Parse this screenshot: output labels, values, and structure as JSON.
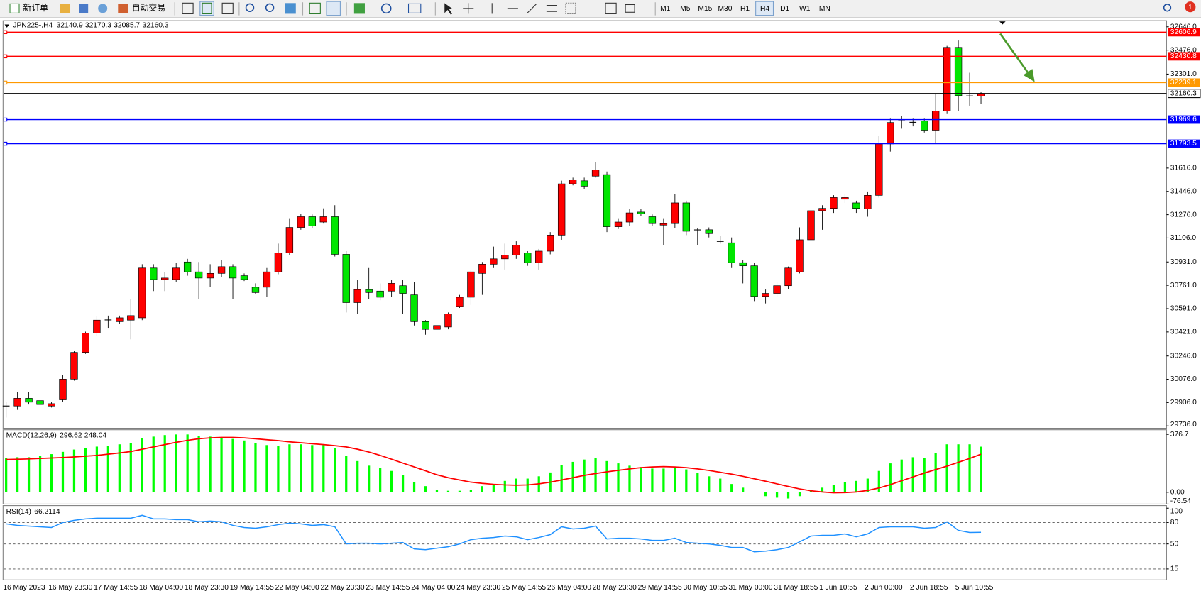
{
  "toolbar": {
    "new_order": "新订单",
    "auto_trading": "自动交易",
    "timeframes": [
      "M1",
      "M5",
      "M15",
      "M30",
      "H1",
      "H4",
      "D1",
      "W1",
      "MN"
    ],
    "notifications": 1
  },
  "chart_data": [
    {
      "type": "candlestick",
      "title": "JPN225-,H4",
      "categories": [
        "16 May 2023",
        null,
        null,
        null,
        "16 May 23:30",
        null,
        null,
        null,
        "17 May 14:55",
        null,
        null,
        null,
        "18 May 04:00",
        null,
        null,
        null,
        "18 May 23:30",
        null,
        null,
        null,
        "19 May 14:55",
        null,
        null,
        null,
        "22 May 04:00",
        null,
        null,
        null,
        "22 May 23:30",
        null,
        null,
        null,
        "23 May 14:55",
        null,
        null,
        null,
        "24 May 04:00",
        null,
        null,
        null,
        "24 May 23:30",
        null,
        null,
        null,
        "25 May 14:55",
        null,
        null,
        null,
        "26 May 04:00",
        null,
        null,
        null,
        "28 May 23:30",
        null,
        null,
        null,
        "29 May 14:55",
        null,
        null,
        null,
        "30 May 10:55",
        null,
        null,
        null,
        "31 May 00:00",
        null,
        null,
        null,
        "31 May 18:55",
        null,
        null,
        null,
        "1 Jun 10:55",
        null,
        null,
        null,
        "2 Jun 00:00",
        null,
        null,
        null,
        "2 Jun 18:55",
        null,
        null,
        null,
        "5 Jun 10:55",
        null,
        null
      ],
      "open": [
        29880,
        29881,
        29937,
        29920,
        29881,
        29926,
        30077,
        30272,
        30412,
        30507,
        30496,
        30507,
        30524,
        30887,
        30803,
        30803,
        30931,
        30859,
        30814,
        30848,
        30897,
        30831,
        30747,
        30747,
        30859,
        30998,
        31183,
        31261,
        31222,
        31261,
        30987,
        30635,
        30730,
        30719,
        30719,
        30758,
        30691,
        30496,
        30440,
        30457,
        30607,
        30674,
        30848,
        30915,
        30954,
        30982,
        30998,
        30926,
        31010,
        31127,
        31501,
        31523,
        31557,
        31568,
        31188,
        31222,
        31295,
        31261,
        31200,
        31211,
        31362,
        31166,
        31166,
        31082,
        31071,
        30926,
        30903,
        30680,
        30702,
        30758,
        30859,
        31093,
        31305,
        31322,
        31389,
        31362,
        31317,
        31417,
        31792,
        31959,
        31948,
        31959,
        31892,
        32032,
        32496,
        32144,
        32140.9
      ],
      "high": [
        29909,
        29982,
        29982,
        29943,
        29909,
        30105,
        30283,
        30423,
        30540,
        30540,
        30540,
        30663,
        30915,
        30915,
        30859,
        30926,
        30954,
        30931,
        30915,
        30943,
        30915,
        30848,
        30775,
        30887,
        31065,
        31250,
        31283,
        31278,
        31322,
        31345,
        31010,
        30803,
        30887,
        30775,
        30803,
        30803,
        30786,
        30507,
        30552,
        30563,
        30691,
        30876,
        30931,
        31043,
        31065,
        31082,
        31010,
        31026,
        31149,
        31524,
        31546,
        31546,
        31658,
        31591,
        31250,
        31317,
        31317,
        31278,
        31250,
        31429,
        31378,
        31177,
        31183,
        31121,
        31110,
        30943,
        30926,
        30730,
        30786,
        30898,
        31183,
        31334,
        31345,
        31418,
        31429,
        31378,
        31445,
        31848,
        31976,
        31993,
        31976,
        31976,
        32155,
        32507,
        32546,
        32311,
        32170.3
      ],
      "low": [
        29797,
        29853,
        29892,
        29864,
        29870,
        29909,
        30066,
        30261,
        30395,
        30451,
        30479,
        30367,
        30507,
        30719,
        30719,
        30786,
        30831,
        30663,
        30747,
        30820,
        30663,
        30792,
        30697,
        30674,
        30842,
        30982,
        31166,
        31177,
        31211,
        30971,
        30563,
        30552,
        30663,
        30652,
        30674,
        30552,
        30468,
        30401,
        30429,
        30440,
        30596,
        30618,
        30691,
        30887,
        30876,
        30954,
        30903,
        30876,
        30987,
        31093,
        31490,
        31462,
        31546,
        31149,
        31172,
        31194,
        31267,
        31194,
        31054,
        31177,
        31127,
        31054,
        31110,
        31065,
        30887,
        30775,
        30646,
        30629,
        30674,
        30736,
        30848,
        31065,
        31166,
        31289,
        31362,
        31289,
        31261,
        31401,
        31736,
        31903,
        31920,
        31875,
        31797,
        32015,
        32032,
        32071,
        32085.7
      ],
      "close": [
        29882,
        29937,
        29909,
        29892,
        29898,
        30077,
        30272,
        30412,
        30507,
        30510,
        30524,
        30540,
        30887,
        30803,
        30814,
        30887,
        30859,
        30814,
        30848,
        30897,
        30814,
        30803,
        30708,
        30859,
        30998,
        31183,
        31261,
        31194,
        31261,
        30987,
        30635,
        30730,
        30708,
        30674,
        30775,
        30702,
        30496,
        30440,
        30468,
        30552,
        30674,
        30859,
        30915,
        30954,
        30982,
        31054,
        30926,
        31010,
        31127,
        31501,
        31529,
        31484,
        31602,
        31188,
        31222,
        31289,
        31283,
        31211,
        31211,
        31362,
        31155,
        31164,
        31138,
        31080,
        30926,
        30903,
        30680,
        30702,
        30758,
        30887,
        31093,
        31305,
        31322,
        31401,
        31401,
        31322,
        31417,
        31792,
        31948,
        31962,
        31951,
        31892,
        32032,
        32496,
        32144,
        32140,
        32160.3
      ],
      "up_color": "#ff0000",
      "down_color": "#00e600",
      "bid_color": "#000000",
      "ylim": [
        29719,
        32685
      ],
      "yticks": [
        {
          "value": 29736,
          "label": "29736.0"
        },
        {
          "value": 29906,
          "label": "29906.0"
        },
        {
          "value": 30076,
          "label": "30076.0"
        },
        {
          "value": 30246,
          "label": "30246.0"
        },
        {
          "value": 30421,
          "label": "30421.0"
        },
        {
          "value": 30591,
          "label": "30591.0"
        },
        {
          "value": 30761,
          "label": "30761.0"
        },
        {
          "value": 30931,
          "label": "30931.0"
        },
        {
          "value": 31106,
          "label": "31106.0"
        },
        {
          "value": 31276,
          "label": "31276.0"
        },
        {
          "value": 31446,
          "label": "31446.0"
        },
        {
          "value": 31616,
          "label": "31616.0"
        },
        {
          "value": 32301,
          "label": "32301.0"
        },
        {
          "value": 32476,
          "label": "32476.0"
        },
        {
          "value": 32646,
          "label": "32646.0"
        }
      ],
      "levels": [
        {
          "value": 32606.9,
          "color": "#ff0000"
        },
        {
          "value": 32430.8,
          "color": "#ff0000"
        },
        {
          "value": 32239.1,
          "color": "#ff9900"
        },
        {
          "value": 31969.6,
          "color": "#0000ff"
        },
        {
          "value": 31793.5,
          "color": "#0000ff"
        }
      ]
    },
    {
      "type": "macd",
      "title": "MACD(12,26,9)",
      "values": [
        223,
        228,
        228,
        238,
        248,
        263,
        278,
        288,
        297,
        302,
        312,
        322,
        352,
        362,
        372,
        376,
        376,
        367,
        362,
        352,
        347,
        337,
        322,
        307,
        302,
        312,
        312,
        307,
        307,
        288,
        238,
        203,
        173,
        159,
        139,
        114,
        64,
        40,
        15,
        10,
        10,
        15,
        40,
        54,
        74,
        89,
        89,
        104,
        129,
        178,
        198,
        213,
        223,
        203,
        188,
        173,
        164,
        154,
        154,
        164,
        149,
        124,
        104,
        89,
        54,
        30,
        2,
        -25,
        -35,
        -40,
        -25,
        10,
        30,
        50,
        64,
        74,
        89,
        139,
        188,
        213,
        228,
        223,
        253,
        312,
        312,
        312,
        296.62
      ],
      "signal": [
        213,
        215,
        217,
        220,
        223,
        226,
        230,
        235,
        240,
        248,
        256,
        265,
        280,
        295,
        310,
        325,
        338,
        348,
        354,
        357,
        357,
        354,
        348,
        342,
        336,
        328,
        322,
        316,
        310,
        303,
        295,
        280,
        262,
        240,
        215,
        190,
        165,
        140,
        114,
        95,
        80,
        66,
        58,
        52,
        48,
        46,
        48,
        55,
        66,
        80,
        95,
        110,
        122,
        133,
        143,
        152,
        160,
        165,
        167,
        165,
        160,
        152,
        142,
        130,
        118,
        104,
        88,
        72,
        55,
        38,
        22,
        10,
        2,
        -3,
        -2,
        2,
        12,
        28,
        50,
        75,
        100,
        125,
        148,
        170,
        195,
        220,
        248.04
      ],
      "color": "#00ff00",
      "signal_color": "#ff0000",
      "ylim": [
        -76.54,
        376.7
      ],
      "yticks": [
        376.7,
        {
          "value": 0,
          "label": "0.00"
        },
        -76.54
      ]
    },
    {
      "type": "rsi",
      "title": "RSI(14)",
      "values": [
        78,
        76,
        75,
        74,
        73,
        80,
        83,
        85,
        86,
        86,
        86,
        86,
        90,
        85,
        85,
        84,
        84,
        81,
        82,
        81,
        76,
        73,
        72,
        74,
        77,
        79,
        78,
        76,
        77,
        74,
        50,
        51,
        51,
        50,
        51,
        52,
        43,
        42,
        44,
        46,
        50,
        56,
        58,
        59,
        61,
        60,
        56,
        59,
        63,
        74,
        71,
        72,
        75,
        57,
        58,
        58,
        57,
        55,
        55,
        58,
        52,
        51,
        50,
        48,
        45,
        45,
        39,
        40,
        42,
        45,
        53,
        61,
        62,
        62,
        64,
        60,
        64,
        73,
        74,
        74,
        74,
        72,
        73,
        81,
        69,
        66,
        66.2114
      ],
      "color": "#1e90ff",
      "ylim": [
        0,
        100
      ],
      "yticks": [
        100,
        80,
        50,
        15
      ],
      "levels": [
        80,
        50,
        15
      ]
    }
  ]
}
